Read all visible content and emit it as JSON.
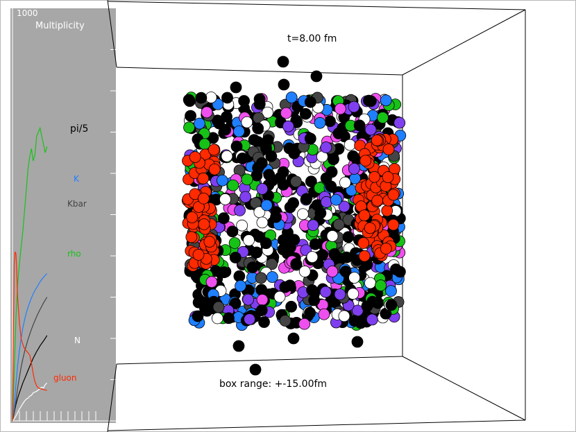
{
  "panel": {
    "max_label": "1000",
    "title": "Multiplicity"
  },
  "scene": {
    "time_label": "t=8.00 fm",
    "range_label": "box range: +-15.00fm"
  },
  "colors": {
    "pi/5": "#000000",
    "K": "#1f7fff",
    "Kbar": "#444444",
    "rho": "#17c217",
    "N": "#ffffff",
    "gluon": "#ff2a00",
    "eta_like": "#7f3fef",
    "omega_like": "#ef4fef",
    "panel_bg": "#a7a7a7"
  },
  "chart_data": {
    "type": "line",
    "title": "Multiplicity",
    "xlabel": "",
    "ylabel": "",
    "ylim": [
      0,
      1000
    ],
    "x_ticks": 12,
    "y_ticks": 10,
    "series": [
      {
        "name": "pi/5",
        "color": "#000000",
        "x": [
          0,
          2,
          4,
          6,
          8,
          10,
          12,
          14,
          16,
          18,
          20,
          22,
          24,
          26,
          28,
          30,
          32,
          34,
          36,
          38,
          40
        ],
        "y": [
          0,
          20,
          40,
          55,
          68,
          80,
          92,
          102,
          112,
          122,
          132,
          142,
          152,
          160,
          168,
          175,
          182,
          188,
          194,
          200,
          207
        ]
      },
      {
        "name": "K",
        "color": "#1f7fff",
        "x": [
          0,
          2,
          4,
          6,
          8,
          10,
          12,
          14,
          16,
          18,
          20,
          22,
          24,
          26,
          28,
          30,
          32,
          34,
          36,
          38,
          40
        ],
        "y": [
          0,
          40,
          90,
          135,
          170,
          200,
          225,
          245,
          262,
          275,
          287,
          298,
          308,
          316,
          323,
          330,
          337,
          343,
          348,
          353,
          357
        ]
      },
      {
        "name": "Kbar",
        "color": "#444444",
        "x": [
          0,
          2,
          4,
          6,
          8,
          10,
          12,
          14,
          16,
          18,
          20,
          22,
          24,
          26,
          28,
          30,
          32,
          34,
          36,
          38,
          40
        ],
        "y": [
          0,
          20,
          50,
          80,
          105,
          130,
          150,
          168,
          183,
          197,
          210,
          222,
          233,
          243,
          253,
          262,
          270,
          278,
          286,
          293,
          300
        ]
      },
      {
        "name": "rho",
        "color": "#17c217",
        "x": [
          0,
          2,
          4,
          6,
          8,
          10,
          12,
          14,
          16,
          18,
          20,
          22,
          24,
          26,
          28,
          30,
          32,
          34,
          36,
          38,
          40
        ],
        "y": [
          0,
          120,
          250,
          330,
          380,
          420,
          460,
          510,
          560,
          610,
          640,
          660,
          630,
          645,
          690,
          700,
          710,
          690,
          670,
          650,
          665
        ]
      },
      {
        "name": "N",
        "color": "#ffffff",
        "x": [
          0,
          2,
          4,
          6,
          8,
          10,
          12,
          14,
          16,
          18,
          20,
          22,
          24,
          26,
          28,
          30,
          32,
          34,
          36,
          38,
          40
        ],
        "y": [
          0,
          5,
          12,
          20,
          28,
          35,
          42,
          48,
          53,
          55,
          60,
          62,
          68,
          70,
          72,
          75,
          78,
          82,
          80,
          88,
          92
        ]
      },
      {
        "name": "gluon",
        "color": "#ff2a00",
        "x": [
          0,
          1,
          2,
          3,
          4,
          5,
          6,
          8,
          10,
          12,
          14,
          16,
          18,
          20,
          22,
          24,
          26,
          28,
          30,
          32,
          34,
          36,
          38,
          40
        ],
        "y": [
          0,
          200,
          380,
          410,
          405,
          360,
          300,
          240,
          200,
          185,
          175,
          170,
          165,
          160,
          140,
          115,
          95,
          85,
          80,
          78,
          77,
          76,
          75,
          74
        ]
      }
    ]
  }
}
